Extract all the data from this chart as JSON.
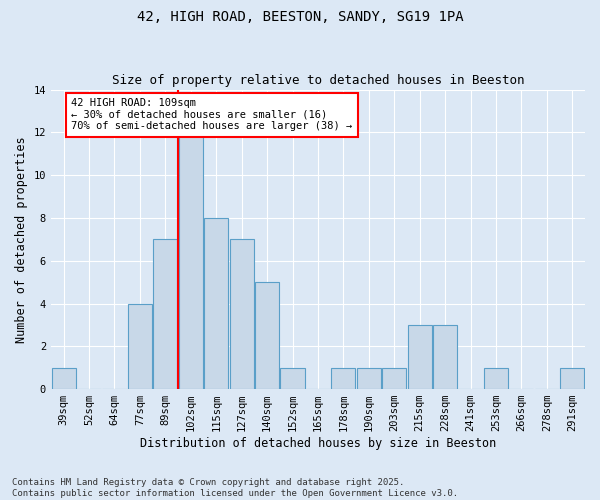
{
  "title1": "42, HIGH ROAD, BEESTON, SANDY, SG19 1PA",
  "title2": "Size of property relative to detached houses in Beeston",
  "xlabel": "Distribution of detached houses by size in Beeston",
  "ylabel": "Number of detached properties",
  "footnote": "Contains HM Land Registry data © Crown copyright and database right 2025.\nContains public sector information licensed under the Open Government Licence v3.0.",
  "categories": [
    "39sqm",
    "52sqm",
    "64sqm",
    "77sqm",
    "89sqm",
    "102sqm",
    "115sqm",
    "127sqm",
    "140sqm",
    "152sqm",
    "165sqm",
    "178sqm",
    "190sqm",
    "203sqm",
    "215sqm",
    "228sqm",
    "241sqm",
    "253sqm",
    "266sqm",
    "278sqm",
    "291sqm"
  ],
  "values": [
    1,
    0,
    0,
    4,
    7,
    12,
    8,
    7,
    5,
    1,
    0,
    1,
    1,
    1,
    3,
    3,
    0,
    1,
    0,
    0,
    1
  ],
  "bar_color": "#c8d8e8",
  "bar_edge_color": "#5a9fc8",
  "red_line_index": 5,
  "annotation_text": "42 HIGH ROAD: 109sqm\n← 30% of detached houses are smaller (16)\n70% of semi-detached houses are larger (38) →",
  "ylim": [
    0,
    14
  ],
  "yticks": [
    0,
    2,
    4,
    6,
    8,
    10,
    12,
    14
  ],
  "bg_color": "#dce8f5",
  "plot_bg_color": "#dce8f5",
  "title_fontsize": 10,
  "subtitle_fontsize": 9,
  "axis_label_fontsize": 8.5,
  "tick_fontsize": 7.5,
  "footnote_fontsize": 6.5
}
